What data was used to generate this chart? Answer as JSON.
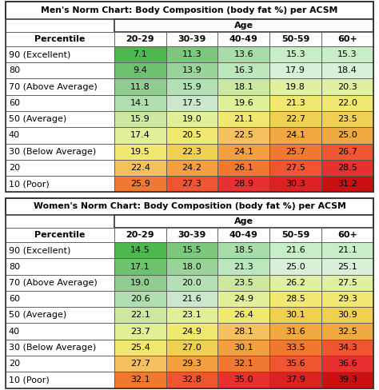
{
  "men_title": "Men's Norm Chart: Body Composition (body fat %) per ACSM",
  "women_title": "Women's Norm Chart: Body Composition (body fat %) per ACSM",
  "age_label": "Age",
  "age_groups": [
    "20-29",
    "30-39",
    "40-49",
    "50-59",
    "60+"
  ],
  "row_labels": [
    "90 (Excellent)",
    "80",
    "70 (Above Average)",
    "60",
    "50 (Average)",
    "40",
    "30 (Below Average)",
    "20",
    "10 (Poor)"
  ],
  "men_data": [
    [
      7.1,
      11.3,
      13.6,
      15.3,
      15.3
    ],
    [
      9.4,
      13.9,
      16.3,
      17.9,
      18.4
    ],
    [
      11.8,
      15.9,
      18.1,
      19.8,
      20.3
    ],
    [
      14.1,
      17.5,
      19.6,
      21.3,
      22.0
    ],
    [
      15.9,
      19.0,
      21.1,
      22.7,
      23.5
    ],
    [
      17.4,
      20.5,
      22.5,
      24.1,
      25.0
    ],
    [
      19.5,
      22.3,
      24.1,
      25.7,
      26.7
    ],
    [
      22.4,
      24.2,
      26.1,
      27.5,
      28.5
    ],
    [
      25.9,
      27.3,
      28.9,
      30.3,
      31.2
    ]
  ],
  "women_data": [
    [
      14.5,
      15.5,
      18.5,
      21.6,
      21.1
    ],
    [
      17.1,
      18.0,
      21.3,
      25.0,
      25.1
    ],
    [
      19.0,
      20.0,
      23.5,
      26.2,
      27.5
    ],
    [
      20.6,
      21.6,
      24.9,
      28.5,
      29.3
    ],
    [
      22.1,
      23.1,
      26.4,
      30.1,
      30.9
    ],
    [
      23.7,
      24.9,
      28.1,
      31.6,
      32.5
    ],
    [
      25.4,
      27.0,
      30.1,
      33.5,
      34.3
    ],
    [
      27.7,
      29.3,
      32.1,
      35.6,
      36.6
    ],
    [
      32.1,
      32.8,
      35.0,
      37.9,
      39.3
    ]
  ],
  "men_colors": [
    [
      "#4db84d",
      "#7dc87d",
      "#a8dca8",
      "#c8eec8",
      "#c8eec8"
    ],
    [
      "#6dc26d",
      "#9ad49a",
      "#bce6bc",
      "#d8f0d8",
      "#d8f0d8"
    ],
    [
      "#90cc90",
      "#b5e0b5",
      "#cce8a0",
      "#dff0a0",
      "#dff0a0"
    ],
    [
      "#b0deb0",
      "#cce8cc",
      "#dff098",
      "#f0e870",
      "#f0e870"
    ],
    [
      "#cce8a0",
      "#dff098",
      "#f0e870",
      "#f0d050",
      "#f0d050"
    ],
    [
      "#dff098",
      "#f0e870",
      "#f4c060",
      "#f0a840",
      "#f0a840"
    ],
    [
      "#f0e870",
      "#f0d050",
      "#f4a040",
      "#f07830",
      "#ee5530"
    ],
    [
      "#f4c060",
      "#f4a040",
      "#f07830",
      "#ee5530",
      "#e83030"
    ],
    [
      "#f07830",
      "#ee5530",
      "#e83030",
      "#dd2020",
      "#cc1010"
    ]
  ],
  "women_colors": [
    [
      "#4db84d",
      "#7dc87d",
      "#a8dca8",
      "#c8eec8",
      "#c8eec8"
    ],
    [
      "#6dc26d",
      "#9ad49a",
      "#bce6bc",
      "#d8f0d8",
      "#d8f0d8"
    ],
    [
      "#90cc90",
      "#b5e0b5",
      "#cce8a0",
      "#dff0a0",
      "#dff0a0"
    ],
    [
      "#b0deb0",
      "#cce8cc",
      "#dff098",
      "#f0e870",
      "#f0e870"
    ],
    [
      "#cce8a0",
      "#dff098",
      "#f0e870",
      "#f0d050",
      "#f0d050"
    ],
    [
      "#dff098",
      "#f0e870",
      "#f4c060",
      "#f0a840",
      "#f0a840"
    ],
    [
      "#f0e870",
      "#f0d050",
      "#f4a040",
      "#f07830",
      "#ee5530"
    ],
    [
      "#f4c060",
      "#f4a040",
      "#f07830",
      "#ee5530",
      "#e83030"
    ],
    [
      "#f07830",
      "#ee5530",
      "#e83030",
      "#dd2020",
      "#cc1010"
    ]
  ],
  "border_color": "#555555",
  "outer_border": "#333333",
  "title_fontsize": 7.8,
  "header_fontsize": 8.0,
  "cell_fontsize": 8.0,
  "fig_bg": "#ffffff"
}
